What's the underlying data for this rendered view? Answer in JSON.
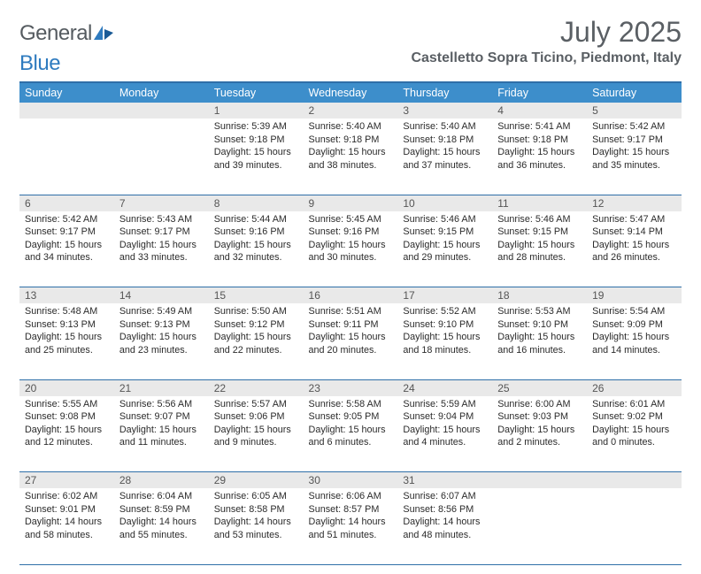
{
  "logo": {
    "part1": "General",
    "part2": "Blue"
  },
  "title": "July 2025",
  "location": "Castelletto Sopra Ticino, Piedmont, Italy",
  "colors": {
    "header_bg": "#3d8ecb",
    "border": "#2f6fa8",
    "daynum_bg": "#e9e9e9",
    "text": "#2b2b2b",
    "title_text": "#5a5f64"
  },
  "fonts": {
    "title_size": 32,
    "location_size": 16,
    "th_size": 12.5,
    "cell_size": 10.8
  },
  "days": [
    "Sunday",
    "Monday",
    "Tuesday",
    "Wednesday",
    "Thursday",
    "Friday",
    "Saturday"
  ],
  "weeks": [
    [
      null,
      null,
      {
        "n": "1",
        "sr": "5:39 AM",
        "ss": "9:18 PM",
        "dl": "15 hours and 39 minutes."
      },
      {
        "n": "2",
        "sr": "5:40 AM",
        "ss": "9:18 PM",
        "dl": "15 hours and 38 minutes."
      },
      {
        "n": "3",
        "sr": "5:40 AM",
        "ss": "9:18 PM",
        "dl": "15 hours and 37 minutes."
      },
      {
        "n": "4",
        "sr": "5:41 AM",
        "ss": "9:18 PM",
        "dl": "15 hours and 36 minutes."
      },
      {
        "n": "5",
        "sr": "5:42 AM",
        "ss": "9:17 PM",
        "dl": "15 hours and 35 minutes."
      }
    ],
    [
      {
        "n": "6",
        "sr": "5:42 AM",
        "ss": "9:17 PM",
        "dl": "15 hours and 34 minutes."
      },
      {
        "n": "7",
        "sr": "5:43 AM",
        "ss": "9:17 PM",
        "dl": "15 hours and 33 minutes."
      },
      {
        "n": "8",
        "sr": "5:44 AM",
        "ss": "9:16 PM",
        "dl": "15 hours and 32 minutes."
      },
      {
        "n": "9",
        "sr": "5:45 AM",
        "ss": "9:16 PM",
        "dl": "15 hours and 30 minutes."
      },
      {
        "n": "10",
        "sr": "5:46 AM",
        "ss": "9:15 PM",
        "dl": "15 hours and 29 minutes."
      },
      {
        "n": "11",
        "sr": "5:46 AM",
        "ss": "9:15 PM",
        "dl": "15 hours and 28 minutes."
      },
      {
        "n": "12",
        "sr": "5:47 AM",
        "ss": "9:14 PM",
        "dl": "15 hours and 26 minutes."
      }
    ],
    [
      {
        "n": "13",
        "sr": "5:48 AM",
        "ss": "9:13 PM",
        "dl": "15 hours and 25 minutes."
      },
      {
        "n": "14",
        "sr": "5:49 AM",
        "ss": "9:13 PM",
        "dl": "15 hours and 23 minutes."
      },
      {
        "n": "15",
        "sr": "5:50 AM",
        "ss": "9:12 PM",
        "dl": "15 hours and 22 minutes."
      },
      {
        "n": "16",
        "sr": "5:51 AM",
        "ss": "9:11 PM",
        "dl": "15 hours and 20 minutes."
      },
      {
        "n": "17",
        "sr": "5:52 AM",
        "ss": "9:10 PM",
        "dl": "15 hours and 18 minutes."
      },
      {
        "n": "18",
        "sr": "5:53 AM",
        "ss": "9:10 PM",
        "dl": "15 hours and 16 minutes."
      },
      {
        "n": "19",
        "sr": "5:54 AM",
        "ss": "9:09 PM",
        "dl": "15 hours and 14 minutes."
      }
    ],
    [
      {
        "n": "20",
        "sr": "5:55 AM",
        "ss": "9:08 PM",
        "dl": "15 hours and 12 minutes."
      },
      {
        "n": "21",
        "sr": "5:56 AM",
        "ss": "9:07 PM",
        "dl": "15 hours and 11 minutes."
      },
      {
        "n": "22",
        "sr": "5:57 AM",
        "ss": "9:06 PM",
        "dl": "15 hours and 9 minutes."
      },
      {
        "n": "23",
        "sr": "5:58 AM",
        "ss": "9:05 PM",
        "dl": "15 hours and 6 minutes."
      },
      {
        "n": "24",
        "sr": "5:59 AM",
        "ss": "9:04 PM",
        "dl": "15 hours and 4 minutes."
      },
      {
        "n": "25",
        "sr": "6:00 AM",
        "ss": "9:03 PM",
        "dl": "15 hours and 2 minutes."
      },
      {
        "n": "26",
        "sr": "6:01 AM",
        "ss": "9:02 PM",
        "dl": "15 hours and 0 minutes."
      }
    ],
    [
      {
        "n": "27",
        "sr": "6:02 AM",
        "ss": "9:01 PM",
        "dl": "14 hours and 58 minutes."
      },
      {
        "n": "28",
        "sr": "6:04 AM",
        "ss": "8:59 PM",
        "dl": "14 hours and 55 minutes."
      },
      {
        "n": "29",
        "sr": "6:05 AM",
        "ss": "8:58 PM",
        "dl": "14 hours and 53 minutes."
      },
      {
        "n": "30",
        "sr": "6:06 AM",
        "ss": "8:57 PM",
        "dl": "14 hours and 51 minutes."
      },
      {
        "n": "31",
        "sr": "6:07 AM",
        "ss": "8:56 PM",
        "dl": "14 hours and 48 minutes."
      },
      null,
      null
    ]
  ],
  "labels": {
    "sunrise": "Sunrise:",
    "sunset": "Sunset:",
    "daylight": "Daylight:"
  }
}
